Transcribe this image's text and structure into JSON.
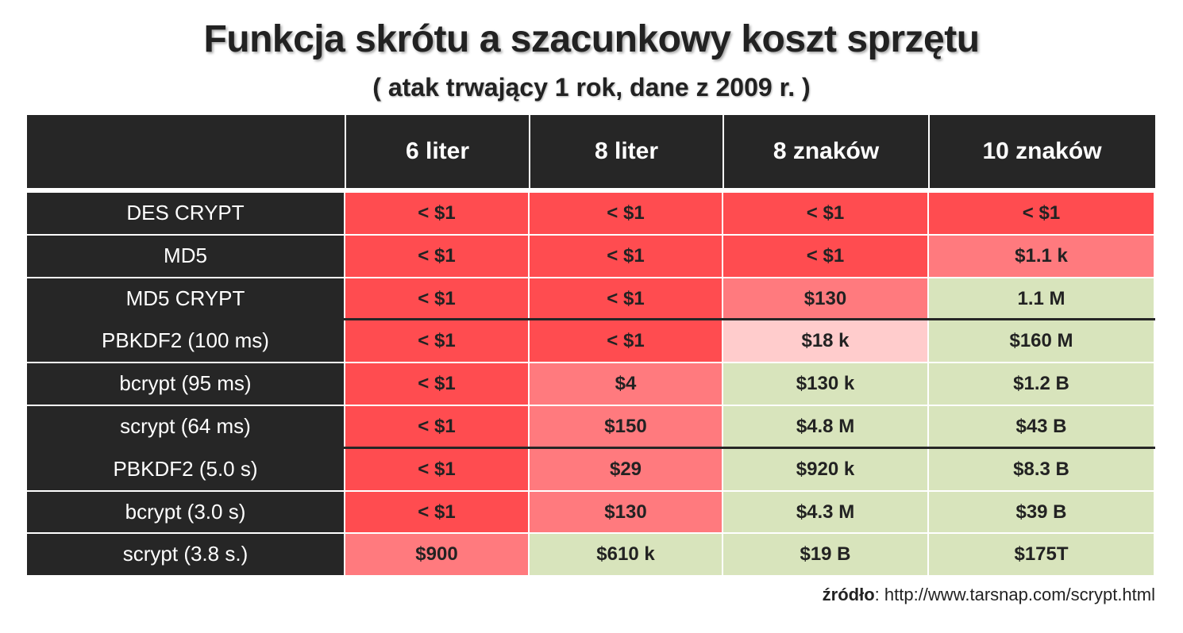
{
  "title": "Funkcja skrótu a szacunkowy koszt sprzętu",
  "subtitle": "( atak trwający 1 rok, dane z 2009 r. )",
  "source": {
    "label": "źródło",
    "separator": ": ",
    "url": "http://www.tarsnap.com/scrypt.html"
  },
  "colors": {
    "header_bg": "#262626",
    "high_risk": "#ff4c50",
    "medium_risk": "#ff7a7e",
    "low_risk": "#ffcccc",
    "safe": "#d8e4bc"
  },
  "chart_data": {
    "type": "table",
    "title": "Funkcja skrótu a szacunkowy koszt sprzętu",
    "subtitle": "( atak trwający 1 rok, dane z 2009 r. )",
    "columns": [
      "6 liter",
      "8 liter",
      "8 znaków",
      "10 znaków"
    ],
    "rows": [
      {
        "label": "DES CRYPT",
        "values": [
          "< $1",
          "< $1",
          "< $1",
          "< $1"
        ],
        "levels": [
          "high",
          "high",
          "high",
          "high"
        ]
      },
      {
        "label": "MD5",
        "values": [
          "< $1",
          "< $1",
          "< $1",
          "$1.1 k"
        ],
        "levels": [
          "high",
          "high",
          "high",
          "medium"
        ]
      },
      {
        "label": "MD5 CRYPT",
        "values": [
          "< $1",
          "< $1",
          "$130",
          "1.1 M"
        ],
        "levels": [
          "high",
          "high",
          "medium",
          "safe"
        ]
      },
      {
        "label": "PBKDF2 (100 ms)",
        "values": [
          "< $1",
          "< $1",
          "$18 k",
          "$160 M"
        ],
        "levels": [
          "high",
          "high",
          "low",
          "safe"
        ]
      },
      {
        "label": "bcrypt (95 ms)",
        "values": [
          "< $1",
          "$4",
          "$130 k",
          "$1.2 B"
        ],
        "levels": [
          "high",
          "medium",
          "safe",
          "safe"
        ]
      },
      {
        "label": "scrypt (64 ms)",
        "values": [
          "< $1",
          "$150",
          "$4.8 M",
          "$43 B"
        ],
        "levels": [
          "high",
          "medium",
          "safe",
          "safe"
        ]
      },
      {
        "label": "PBKDF2 (5.0 s)",
        "values": [
          "< $1",
          "$29",
          "$920 k",
          "$8.3 B"
        ],
        "levels": [
          "high",
          "medium",
          "safe",
          "safe"
        ]
      },
      {
        "label": "bcrypt (3.0 s)",
        "values": [
          "< $1",
          "$130",
          "$4.3 M",
          "$39 B"
        ],
        "levels": [
          "high",
          "medium",
          "safe",
          "safe"
        ]
      },
      {
        "label": "scrypt (3.8 s.)",
        "values": [
          "$900",
          "$610 k",
          "$19 B",
          "$175T"
        ],
        "levels": [
          "medium",
          "safe",
          "safe",
          "safe"
        ]
      }
    ]
  }
}
